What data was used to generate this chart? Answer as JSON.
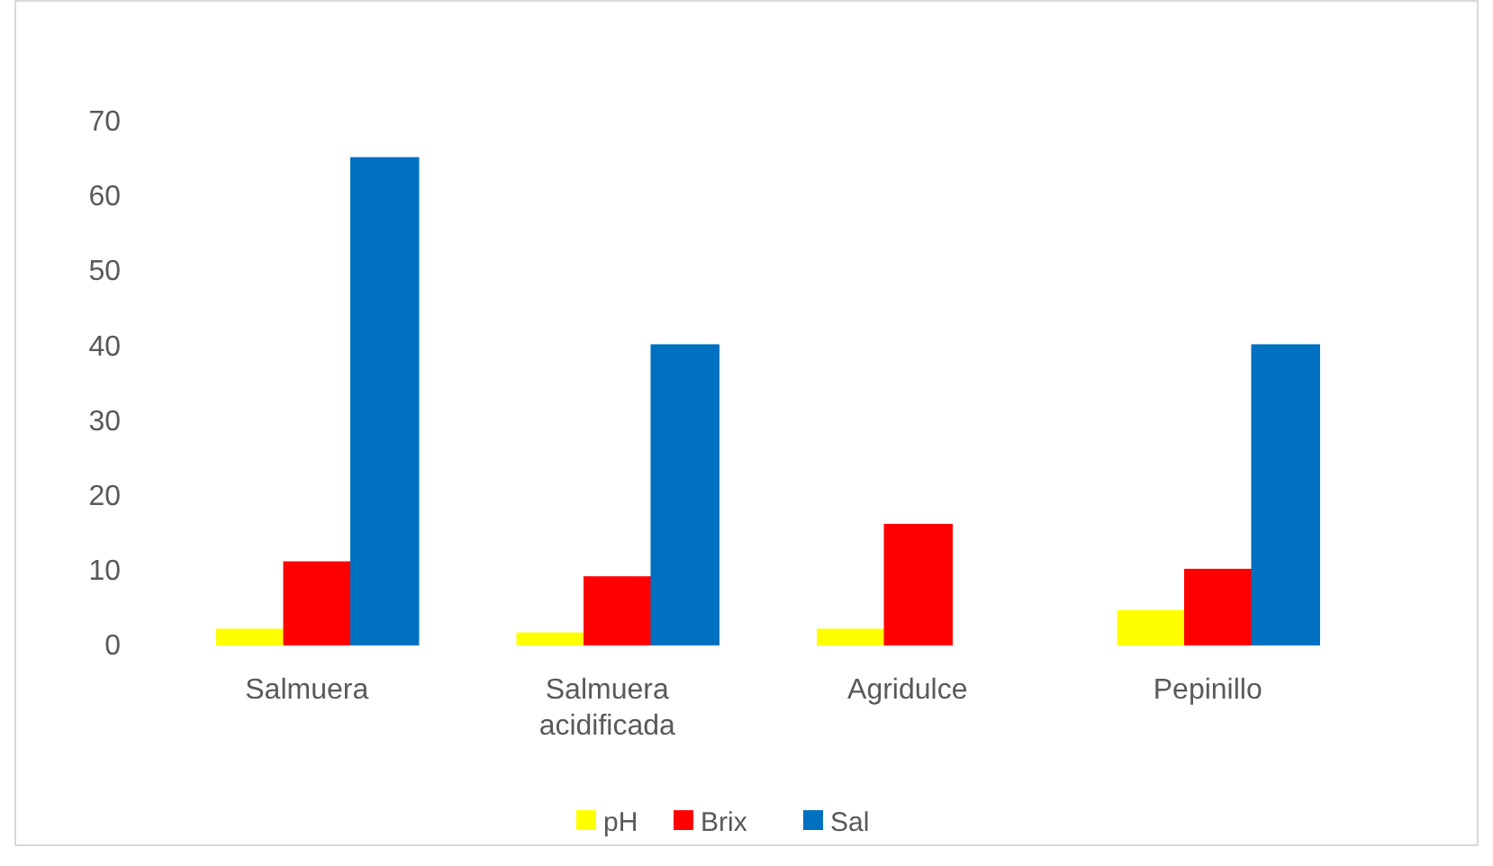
{
  "chart_data": {
    "type": "bar",
    "categories": [
      "Salmuera",
      "Salmuera acidificada",
      "Agridulce",
      "Pepinillo"
    ],
    "series": [
      {
        "name": "pH",
        "color": "#ffff00",
        "values": [
          2,
          1.5,
          2,
          4.5
        ]
      },
      {
        "name": "Brix",
        "color": "#ff0000",
        "values": [
          11,
          9,
          16,
          10
        ]
      },
      {
        "name": "Sal",
        "color": "#0070c0",
        "values": [
          65,
          40,
          0,
          40
        ]
      }
    ],
    "ylim": [
      0,
      70
    ],
    "yticks": [
      0,
      10,
      20,
      30,
      40,
      50,
      60,
      70
    ],
    "legend": "bottom"
  }
}
